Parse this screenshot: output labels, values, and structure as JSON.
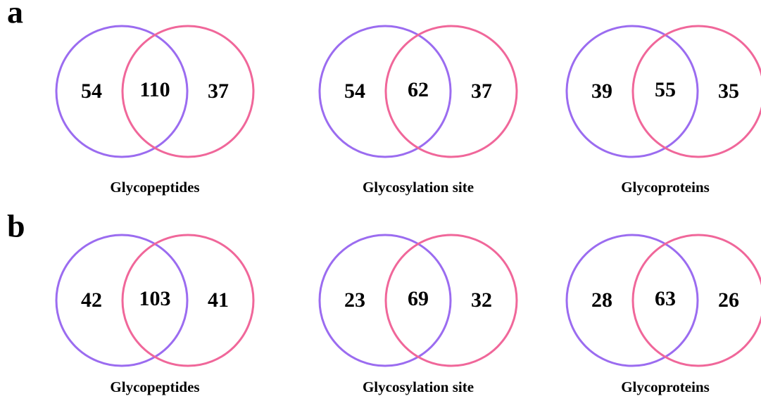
{
  "panels": [
    {
      "label": "a",
      "venns": [
        {
          "title": "Glycopeptides",
          "left": "54",
          "overlap": "110",
          "right": "37"
        },
        {
          "title": "Glycosylation site",
          "left": "54",
          "overlap": "62",
          "right": "37"
        },
        {
          "title": "Glycoproteins",
          "left": "39",
          "overlap": "55",
          "right": "35"
        }
      ]
    },
    {
      "label": "b",
      "venns": [
        {
          "title": "Glycopeptides",
          "left": "42",
          "overlap": "103",
          "right": "41"
        },
        {
          "title": "Glycosylation site",
          "left": "23",
          "overlap": "69",
          "right": "32"
        },
        {
          "title": "Glycoproteins",
          "left": "28",
          "overlap": "63",
          "right": "26"
        }
      ]
    }
  ]
}
